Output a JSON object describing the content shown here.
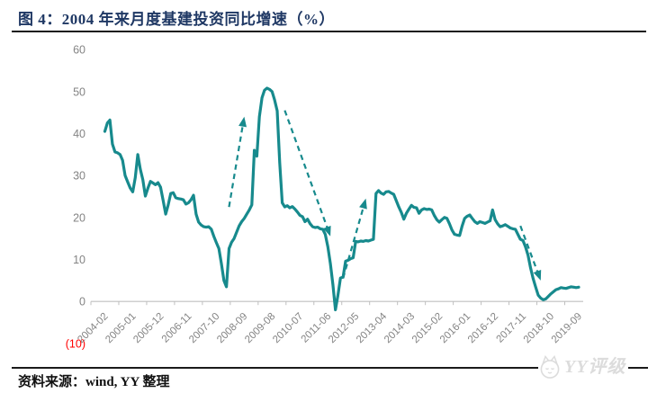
{
  "header": {
    "title": "图 4：2004 年来月度基建投资同比增速（%）"
  },
  "footer": {
    "source_label": "资料来源：wind, YY 整理"
  },
  "brand": {
    "logo_text": "YY评级",
    "logo_icon": "cat-face-icon",
    "logo_color": "#dcdcdc"
  },
  "chart_data": {
    "type": "line",
    "title": "2004 年来月度基建投资同比增速（%）",
    "xlabel": "",
    "ylabel": "",
    "unit": "%",
    "grid": false,
    "legend_position": "none",
    "ylim": [
      -10,
      60
    ],
    "yticks": [
      60,
      50,
      40,
      30,
      20,
      10,
      0,
      -10
    ],
    "ytick_labels": [
      "60",
      "50",
      "40",
      "30",
      "20",
      "10",
      "0",
      "(10)"
    ],
    "negative_label_color": "#FF0000",
    "axis_label_color": "#848484",
    "axis_line_color": "#bfbfbf",
    "line_color": "#178A8D",
    "x_tick_labels": [
      "2004-02",
      "2005-01",
      "2005-12",
      "2006-11",
      "2007-10",
      "2008-09",
      "2009-08",
      "2010-07",
      "2011-06",
      "2012-05",
      "2013-04",
      "2014-03",
      "2015-02",
      "2016-01",
      "2016-12",
      "2017-11",
      "2018-10",
      "2019-09"
    ],
    "series": [
      {
        "name": "月度基建投资同比增速(%)",
        "frequency": "monthly",
        "start_month": "2004-02",
        "end_month": "2019-09",
        "values": [
          40.5,
          42.5,
          43.2,
          37.5,
          35.6,
          35.4,
          35.0,
          33.6,
          30.0,
          28.5,
          27.0,
          26.1,
          29.5,
          35.0,
          31.5,
          29.0,
          25.1,
          27.0,
          28.6,
          28.2,
          27.8,
          28.3,
          27.2,
          24.0,
          20.8,
          23.0,
          25.7,
          25.9,
          24.7,
          24.5,
          24.4,
          24.2,
          23.2,
          23.5,
          24.2,
          25.3,
          20.8,
          18.9,
          18.2,
          17.8,
          17.7,
          17.8,
          17.2,
          15.5,
          14.0,
          12.6,
          9.0,
          5.0,
          3.5,
          12.6,
          14.1,
          15.0,
          16.5,
          18.0,
          19.0,
          19.8,
          20.8,
          21.8,
          23.0,
          36.0,
          34.6,
          44.0,
          48.5,
          50.3,
          50.8,
          50.5,
          50.0,
          48.0,
          45.4,
          33.0,
          23.5,
          22.5,
          22.8,
          22.3,
          22.6,
          22.0,
          21.3,
          20.5,
          20.2,
          19.0,
          19.6,
          18.5,
          17.8,
          17.6,
          17.7,
          17.3,
          17.2,
          16.0,
          13.0,
          9.0,
          4.0,
          -2.0,
          1.5,
          5.6,
          5.8,
          9.6,
          9.8,
          10.2,
          10.4,
          14.3,
          14.2,
          14.4,
          14.3,
          14.5,
          14.4,
          14.6,
          14.8,
          25.7,
          26.4,
          25.8,
          25.5,
          26.1,
          26.2,
          25.8,
          25.5,
          24.0,
          22.5,
          21.2,
          19.6,
          21.0,
          22.0,
          22.9,
          22.4,
          22.3,
          21.0,
          21.8,
          22.1,
          21.9,
          22.0,
          21.8,
          20.5,
          19.5,
          18.9,
          19.5,
          20.0,
          19.8,
          18.5,
          17.0,
          16.0,
          15.8,
          15.7,
          18.0,
          19.8,
          20.3,
          20.6,
          19.8,
          19.0,
          18.6,
          19.0,
          18.8,
          18.6,
          18.9,
          19.2,
          21.8,
          19.5,
          18.5,
          17.8,
          18.0,
          18.3,
          17.9,
          17.5,
          17.3,
          17.2,
          16.0,
          14.8,
          14.5,
          13.0,
          11.0,
          8.0,
          5.5,
          3.5,
          1.5,
          0.8,
          0.4,
          0.6,
          1.2,
          1.8,
          2.3,
          2.8,
          3.0,
          3.3,
          3.2,
          3.1,
          3.3,
          3.5,
          3.4,
          3.3,
          3.4
        ]
      }
    ],
    "annotations": {
      "trend_arrows": [
        {
          "direction": "up",
          "from_month": "2008-03",
          "from_value": 22.5,
          "to_month": "2008-09",
          "to_value": 44.0
        },
        {
          "direction": "down",
          "from_month": "2010-01",
          "from_value": 45.5,
          "to_month": "2011-07",
          "to_value": 15.5
        },
        {
          "direction": "up",
          "from_month": "2011-12",
          "from_value": 5.5,
          "to_month": "2012-09",
          "to_value": 24.5
        },
        {
          "direction": "down",
          "from_month": "2017-10",
          "from_value": 18.0,
          "to_month": "2018-06",
          "to_value": 5.0
        }
      ]
    }
  }
}
